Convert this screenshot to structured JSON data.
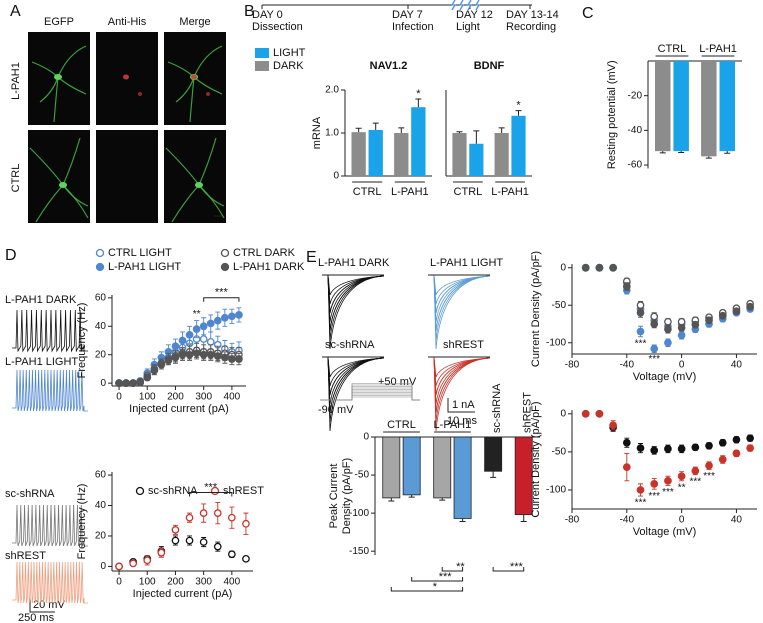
{
  "panel_labels": [
    "A",
    "B",
    "C",
    "D",
    "E"
  ],
  "panel_a": {
    "columns": [
      "EGFP",
      "Anti-His",
      "Merge"
    ],
    "rows": [
      "L-PAH1",
      "CTRL"
    ]
  },
  "timeline": [
    {
      "day": "DAY 0",
      "event": "Dissection"
    },
    {
      "day": "DAY 7",
      "event": "Infection"
    },
    {
      "day": "DAY 12",
      "event": "Light"
    },
    {
      "day": "DAY 13-14",
      "event": "Recording"
    }
  ],
  "traces_d": {
    "labels": [
      "L-PAH1 DARK",
      "L-PAH1 LIGHT",
      "sc-shRNA",
      "shREST"
    ],
    "scale": [
      "20 mV",
      "250 ms"
    ]
  },
  "traces_e": {
    "labels": [
      "L-PAH1 DARK",
      "L-PAH1 LIGHT",
      "sc-shRNA",
      "shREST"
    ],
    "protocol": [
      "+50 mV",
      "-90 mV"
    ],
    "scale": [
      "1 nA",
      "10 ms"
    ]
  },
  "chart_data": [
    {
      "type": "bar",
      "title": "NAV1.2",
      "ylabel": "mRNA",
      "ylim": [
        0,
        2
      ],
      "yticks": [
        0,
        {
          "value": 1,
          "label": "1.0"
        },
        {
          "value": 2,
          "label": "2.0"
        }
      ],
      "legend": [
        {
          "name": "LIGHT",
          "color": "#1aa3e8"
        },
        {
          "name": "DARK",
          "color": "#8c8c8c"
        }
      ],
      "groups": [
        {
          "label": "CTRL",
          "values": [
            1.02,
            1.07
          ],
          "errors": [
            0.09,
            0.16
          ],
          "colors": [
            "#8c8c8c",
            "#1aa3e8"
          ]
        },
        {
          "label": "L-PAH1",
          "values": [
            1.0,
            1.6
          ],
          "errors": [
            0.12,
            0.19
          ],
          "colors": [
            "#8c8c8c",
            "#1aa3e8"
          ],
          "significance": [
            null,
            "*"
          ]
        }
      ]
    },
    {
      "type": "bar",
      "title": "BDNF",
      "ylim": [
        0,
        2
      ],
      "groups": [
        {
          "label": "CTRL",
          "values": [
            1.0,
            0.75
          ],
          "errors": [
            0.03,
            0.3
          ],
          "colors": [
            "#8c8c8c",
            "#1aa3e8"
          ]
        },
        {
          "label": "L-PAH1",
          "values": [
            1.0,
            1.4
          ],
          "errors": [
            0.12,
            0.12
          ],
          "colors": [
            "#8c8c8c",
            "#1aa3e8"
          ],
          "significance": [
            null,
            "*"
          ]
        }
      ]
    },
    {
      "type": "bar",
      "ylabel": "Resting potential (mV)",
      "ylim": [
        -62,
        0
      ],
      "yticks": [
        -20,
        -40,
        -60
      ],
      "groups": [
        {
          "label": "CTRL",
          "values": [
            -52,
            -52
          ],
          "errors": [
            1,
            0.8
          ],
          "colors": [
            "#8c8c8c",
            "#1aa3e8"
          ]
        },
        {
          "label": "L-PAH1",
          "values": [
            -55,
            -52
          ],
          "errors": [
            1,
            1.2
          ],
          "colors": [
            "#8c8c8c",
            "#1aa3e8"
          ]
        }
      ]
    },
    {
      "type": "scatter",
      "xlabel": "Injected current (pA)",
      "ylabel": "Frequency (Hz)",
      "xlim": [
        -25,
        450
      ],
      "ylim": [
        -2,
        62
      ],
      "xticks": [
        0,
        100,
        200,
        300,
        400
      ],
      "yticks": [
        0,
        20,
        40,
        60
      ],
      "x": [
        0,
        25,
        50,
        75,
        100,
        125,
        150,
        175,
        200,
        225,
        250,
        275,
        300,
        325,
        350,
        375,
        400,
        425
      ],
      "series": [
        {
          "name": "CTRL LIGHT",
          "color": "#4f86d0",
          "filled": false,
          "values": [
            0,
            0,
            0,
            0.5,
            4,
            9,
            14,
            18,
            22,
            25,
            28,
            31,
            31,
            29,
            27,
            24,
            22,
            23
          ],
          "errors": [
            0,
            0,
            0,
            0.5,
            2,
            3,
            4,
            4,
            5,
            5,
            6,
            6,
            7,
            7,
            6,
            6,
            6,
            6
          ]
        },
        {
          "name": "L-PAH1 LIGHT",
          "color": "#4f86d0",
          "filled": true,
          "values": [
            0,
            0,
            0,
            1.5,
            7,
            13,
            18,
            22,
            26,
            30,
            34,
            38,
            40,
            42,
            44,
            46,
            47,
            48
          ],
          "errors": [
            0,
            0,
            0,
            1,
            3,
            4,
            4,
            5,
            5,
            6,
            6,
            6,
            6,
            6,
            6,
            6,
            5,
            5
          ],
          "significance": [
            null,
            null,
            null,
            null,
            null,
            null,
            null,
            null,
            null,
            null,
            null,
            "**",
            null,
            null,
            null,
            null,
            null,
            null
          ]
        },
        {
          "name": "CTRL DARK",
          "color": "#555555",
          "filled": false,
          "values": [
            0,
            0,
            0,
            1,
            5,
            10,
            14,
            17,
            19,
            21,
            22,
            23,
            22,
            22,
            21,
            21,
            20,
            20
          ],
          "errors": [
            0,
            0,
            0,
            1,
            2,
            3,
            3,
            4,
            4,
            4,
            5,
            5,
            5,
            5,
            5,
            5,
            5,
            5
          ]
        },
        {
          "name": "L-PAH1 DARK",
          "color": "#555555",
          "filled": true,
          "values": [
            0,
            0,
            0,
            0.5,
            4,
            9,
            13,
            16,
            18,
            20,
            20,
            21,
            20,
            20,
            19,
            18,
            17,
            17
          ],
          "errors": [
            0,
            0,
            0,
            0.5,
            2,
            3,
            3,
            3,
            4,
            4,
            4,
            4,
            4,
            4,
            4,
            4,
            4,
            4
          ]
        }
      ],
      "brackets": [
        {
          "x": [
            300,
            425
          ],
          "text": "***"
        }
      ]
    },
    {
      "type": "scatter",
      "xlabel": "Injected current (pA)",
      "ylabel": "Frequency (Hz)",
      "xlim": [
        -25,
        475
      ],
      "ylim": [
        -3,
        62
      ],
      "xticks": [
        0,
        100,
        200,
        300,
        400
      ],
      "yticks": [
        0,
        20,
        40,
        60
      ],
      "x": [
        0,
        50,
        100,
        150,
        200,
        250,
        300,
        350,
        400,
        450
      ],
      "series": [
        {
          "name": "sc-shRNA",
          "color": "#111111",
          "filled": false,
          "values": [
            0,
            3,
            5,
            10,
            17,
            17,
            16,
            13,
            8,
            5
          ],
          "errors": [
            0,
            1,
            2,
            3,
            3,
            3,
            3,
            3,
            2,
            1
          ]
        },
        {
          "name": "shREST",
          "color": "#c8342a",
          "filled": false,
          "values": [
            0,
            2,
            4,
            9,
            24,
            32,
            35,
            35,
            32,
            28
          ],
          "errors": [
            0,
            1,
            3,
            3,
            3,
            3,
            6,
            7,
            7,
            7
          ]
        }
      ],
      "brackets": [
        {
          "x": [
            250,
            400
          ],
          "text": "***"
        }
      ]
    },
    {
      "type": "bar",
      "ylabel": [
        "Peak Current",
        "Density (pA/pF)"
      ],
      "ylim": [
        -155,
        0
      ],
      "yticks": [
        0,
        -50,
        -100,
        -150
      ],
      "groups": [
        {
          "label": "CTRL",
          "values": [
            -80,
            -76
          ],
          "errors": [
            4,
            3
          ],
          "colors": [
            "#a6a6a6",
            "#5b9bd5"
          ]
        },
        {
          "label": "L-PAH1",
          "values": [
            -80,
            -107
          ],
          "errors": [
            3,
            4
          ],
          "colors": [
            "#a6a6a6",
            "#5b9bd5"
          ]
        },
        {
          "label": "sc-shRNA",
          "values": [
            -45
          ],
          "errors": [
            8
          ],
          "colors": [
            "#222222"
          ]
        },
        {
          "label": "shREST",
          "values": [
            -102
          ],
          "errors": [
            9
          ],
          "colors": [
            "#c8202a"
          ]
        }
      ],
      "brackets": [
        {
          "bars": [
            2,
            3
          ],
          "text": "**"
        },
        {
          "bars": [
            1,
            3
          ],
          "text": "***"
        },
        {
          "bars": [
            0,
            3
          ],
          "text": "*"
        },
        {
          "bars": [
            4,
            5
          ],
          "text": "***"
        }
      ]
    },
    {
      "type": "scatter",
      "xlabel": "Voltage (mV)",
      "ylabel": "Current Density (pA/pF)",
      "xlim": [
        -80,
        55
      ],
      "ylim": [
        -115,
        5
      ],
      "xticks": [
        -80,
        -40,
        0,
        40
      ],
      "yticks": [
        0,
        -50,
        -100
      ],
      "x": [
        -70,
        -60,
        -50,
        -40,
        -30,
        -20,
        -10,
        0,
        10,
        20,
        30,
        40,
        50
      ],
      "series": [
        {
          "name": "CTRL LIGHT",
          "color": "#4f86d0",
          "filled": false,
          "values": [
            0,
            0,
            0,
            -20,
            -55,
            -70,
            -78,
            -75,
            -72,
            -68,
            -62,
            -57,
            -52
          ],
          "errors": [
            1,
            1,
            2,
            4,
            6,
            5,
            5,
            4,
            4,
            4,
            3,
            3,
            3
          ]
        },
        {
          "name": "L-PAH1 LIGHT",
          "color": "#4f86d0",
          "filled": true,
          "values": [
            0,
            0,
            0,
            -30,
            -85,
            -108,
            -100,
            -90,
            -82,
            -75,
            -68,
            -60,
            -55
          ],
          "errors": [
            1,
            1,
            2,
            5,
            7,
            5,
            5,
            5,
            4,
            4,
            4,
            3,
            3
          ],
          "significance": [
            null,
            null,
            null,
            null,
            "***",
            "***",
            null,
            null,
            null,
            null,
            null,
            null,
            null
          ]
        },
        {
          "name": "CTRL DARK",
          "color": "#555555",
          "filled": false,
          "values": [
            0,
            0,
            0,
            -18,
            -50,
            -65,
            -72,
            -72,
            -70,
            -66,
            -60,
            -54,
            -48
          ],
          "errors": [
            1,
            1,
            2,
            4,
            5,
            5,
            4,
            4,
            4,
            3,
            3,
            3,
            3
          ]
        },
        {
          "name": "L-PAH1 DARK",
          "color": "#555555",
          "filled": true,
          "values": [
            0,
            0,
            0,
            -25,
            -60,
            -75,
            -82,
            -80,
            -76,
            -70,
            -64,
            -58,
            -52
          ],
          "errors": [
            1,
            1,
            2,
            5,
            6,
            5,
            5,
            4,
            4,
            4,
            3,
            3,
            3
          ]
        }
      ]
    },
    {
      "type": "scatter",
      "xlabel": "Voltage (mV)",
      "ylabel": "Current Density (pA/pF)",
      "xlim": [
        -80,
        55
      ],
      "ylim": [
        -125,
        5
      ],
      "xticks": [
        -80,
        -40,
        0,
        40
      ],
      "yticks": [
        0,
        -50,
        -100
      ],
      "x": [
        -70,
        -60,
        -50,
        -40,
        -30,
        -20,
        -10,
        0,
        10,
        20,
        30,
        40,
        50
      ],
      "series": [
        {
          "name": "sc-shRNA",
          "color": "#111111",
          "filled": true,
          "values": [
            0,
            0,
            -18,
            -38,
            -45,
            -48,
            -46,
            -46,
            -44,
            -42,
            -38,
            -34,
            -32
          ],
          "errors": [
            1,
            1,
            5,
            6,
            6,
            5,
            5,
            5,
            4,
            4,
            4,
            4,
            4
          ]
        },
        {
          "name": "shREST",
          "color": "#c8342a",
          "filled": true,
          "values": [
            0,
            0,
            -15,
            -70,
            -100,
            -92,
            -88,
            -82,
            -75,
            -68,
            -60,
            -52,
            -45
          ],
          "errors": [
            1,
            1,
            6,
            18,
            8,
            7,
            6,
            6,
            5,
            5,
            5,
            4,
            4
          ],
          "significance": [
            null,
            null,
            null,
            null,
            "***",
            "***",
            "***",
            "**",
            "***",
            "***",
            null,
            null,
            null
          ]
        }
      ]
    }
  ]
}
